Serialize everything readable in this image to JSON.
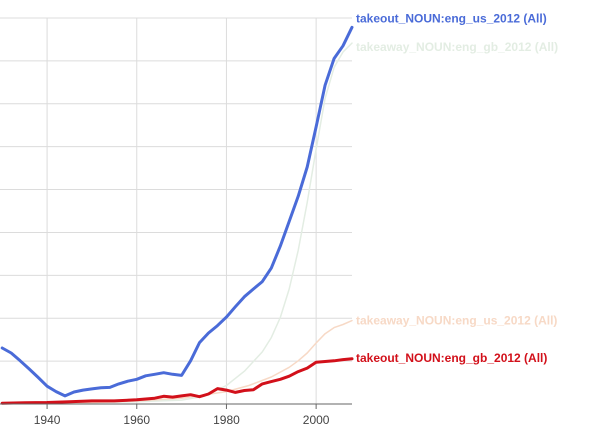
{
  "chart_data": {
    "type": "line",
    "title": "",
    "xlabel": "",
    "ylabel": "",
    "xlim": [
      1929.5,
      2008
    ],
    "ylim": [
      0,
      1
    ],
    "grid": true,
    "legend": "inline labels at the right end of each series",
    "x_ticks": [
      1940,
      1960,
      1980,
      2000
    ],
    "series": [
      {
        "name": "takeout_NOUN:eng_us_2012 (All)",
        "color": "#4a6bd8",
        "faded": false,
        "x": [
          1930,
          1932,
          1934,
          1936,
          1938,
          1940,
          1942,
          1944,
          1946,
          1948,
          1950,
          1952,
          1954,
          1956,
          1958,
          1960,
          1962,
          1964,
          1966,
          1968,
          1970,
          1972,
          1974,
          1976,
          1978,
          1980,
          1982,
          1984,
          1986,
          1988,
          1990,
          1992,
          1994,
          1996,
          1998,
          2000,
          2002,
          2004,
          2006,
          2008
        ],
        "y": [
          0.145,
          0.132,
          0.112,
          0.091,
          0.069,
          0.046,
          0.032,
          0.021,
          0.031,
          0.036,
          0.039,
          0.042,
          0.043,
          0.052,
          0.059,
          0.064,
          0.073,
          0.077,
          0.081,
          0.077,
          0.074,
          0.112,
          0.159,
          0.184,
          0.203,
          0.225,
          0.252,
          0.278,
          0.298,
          0.317,
          0.352,
          0.409,
          0.473,
          0.538,
          0.614,
          0.718,
          0.826,
          0.895,
          0.928,
          0.976
        ]
      },
      {
        "name": "takeaway_NOUN:eng_gb_2012 (All)",
        "color": "#e3ede3",
        "faded": true,
        "x": [
          1930,
          1940,
          1950,
          1960,
          1970,
          1975,
          1980,
          1984,
          1986,
          1988,
          1990,
          1992,
          1994,
          1996,
          1998,
          2000,
          2002,
          2004,
          2006,
          2008
        ],
        "y": [
          0.003,
          0.003,
          0.003,
          0.006,
          0.01,
          0.02,
          0.048,
          0.085,
          0.11,
          0.135,
          0.172,
          0.224,
          0.298,
          0.398,
          0.522,
          0.66,
          0.792,
          0.872,
          0.912,
          0.935
        ]
      },
      {
        "name": "takeaway_NOUN:eng_us_2012 (All)",
        "color": "#f7d9c6",
        "faded": true,
        "x": [
          1930,
          1950,
          1960,
          1970,
          1980,
          1985,
          1990,
          1994,
          1996,
          1998,
          2000,
          2002,
          2004,
          2006,
          2008
        ],
        "y": [
          0.002,
          0.004,
          0.008,
          0.015,
          0.032,
          0.048,
          0.07,
          0.095,
          0.112,
          0.132,
          0.158,
          0.182,
          0.198,
          0.206,
          0.216
        ]
      },
      {
        "name": "takeout_NOUN:eng_gb_2012 (All)",
        "color": "#d2101a",
        "faded": false,
        "x": [
          1930,
          1935,
          1940,
          1945,
          1950,
          1955,
          1960,
          1964,
          1966,
          1968,
          1970,
          1972,
          1974,
          1976,
          1978,
          1980,
          1982,
          1984,
          1986,
          1988,
          1990,
          1992,
          1994,
          1996,
          1998,
          2000,
          2002,
          2004,
          2006,
          2008
        ],
        "y": [
          0.002,
          0.003,
          0.004,
          0.006,
          0.008,
          0.008,
          0.011,
          0.015,
          0.02,
          0.018,
          0.021,
          0.024,
          0.019,
          0.026,
          0.04,
          0.036,
          0.03,
          0.035,
          0.037,
          0.052,
          0.058,
          0.064,
          0.072,
          0.084,
          0.093,
          0.108,
          0.11,
          0.112,
          0.115,
          0.117
        ]
      }
    ]
  }
}
